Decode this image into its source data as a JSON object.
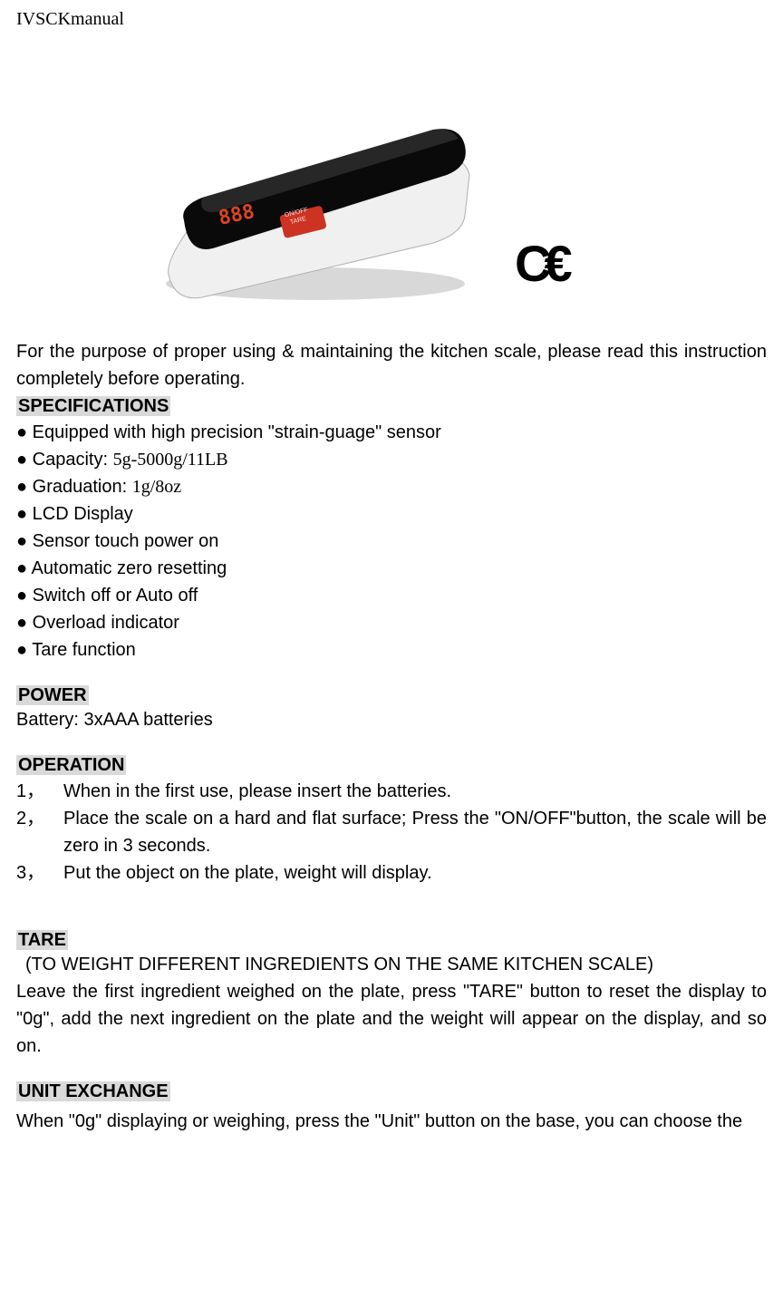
{
  "header": {
    "title": "IVSCKmanual"
  },
  "product_image": {
    "display_value": "888",
    "display_color": "#dd4422",
    "button_line1": "ON / OFF",
    "button_line2": "TARE",
    "button_color": "#cc3322",
    "body_color": "#0a0a0a",
    "highlight_color": "#3a3a3a",
    "edge_color": "#707070"
  },
  "ce_mark": "C€",
  "intro": "For the purpose of proper using & maintaining the kitchen scale, please read this instruction completely before operating.",
  "specifications": {
    "heading": "SPECIFICATIONS",
    "items": [
      {
        "text": "Equipped with high precision \"strain-guage\" sensor"
      },
      {
        "text": "Capacity: ",
        "serif": "5g-5000g/11LB"
      },
      {
        "text": "Graduation: ",
        "serif": "1g/8oz"
      },
      {
        "text": "LCD Display"
      },
      {
        "text": "Sensor touch power on"
      },
      {
        "text": "Automatic zero resetting"
      },
      {
        "text": "Switch off or Auto off"
      },
      {
        "text": "Overload indicator"
      },
      {
        "text": "Tare function"
      }
    ]
  },
  "power": {
    "heading": "POWER",
    "text": "Battery: 3xAAA batteries"
  },
  "operation": {
    "heading": "OPERATION",
    "steps": [
      {
        "num": "1，",
        "text": "When in the first use, please insert the batteries."
      },
      {
        "num": "2，",
        "text": "Place the scale on a hard and flat surface; Press the \"ON/OFF\"button, the scale will be zero in 3 seconds."
      },
      {
        "num": "3，",
        "text": "Put the object on the plate, weight will display."
      }
    ]
  },
  "tare": {
    "heading": "TARE",
    "subtitle": "(TO WEIGHT DIFFERENT INGREDIENTS ON THE SAME KITCHEN SCALE)",
    "text": "Leave the first ingredient weighed on the plate, press \"TARE\" button to reset the display to \"0g\", add the next ingredient on the plate and the weight will appear on the display, and so on."
  },
  "unit_exchange": {
    "heading": "UNIT EXCHANGE",
    "text": "When \"0g\" displaying or weighing, press the \"Unit\" button on the base, you can choose the"
  },
  "colors": {
    "heading_bg": "#d9d9d9",
    "text": "#000000",
    "bg": "#ffffff"
  },
  "fonts": {
    "body_size": 20,
    "header_size": 20
  }
}
